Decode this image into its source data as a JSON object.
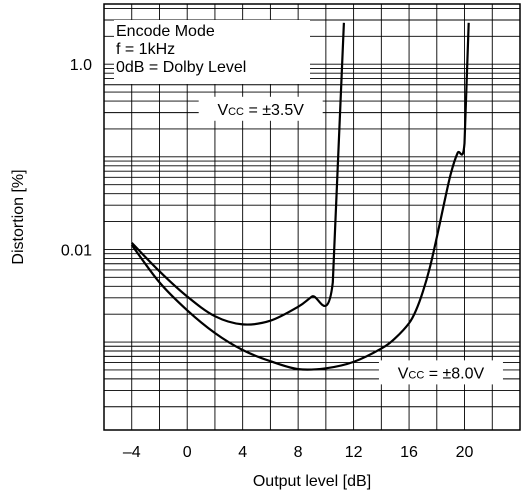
{
  "chart_data": {
    "type": "line",
    "xlabel": "Output level [dB]",
    "ylabel": "Distortion [%]",
    "xlim": [
      -6,
      24
    ],
    "ylim_log10": [
      -3.95,
      0.65
    ],
    "y_scale": "log",
    "x_ticks": [
      -4,
      0,
      4,
      8,
      12,
      16,
      20
    ],
    "x_tick_labels": [
      "–4",
      "0",
      "4",
      "8",
      "12",
      "16",
      "20"
    ],
    "y_ticks": [
      1.0,
      0.01
    ],
    "y_tick_labels": [
      "1.0",
      "0.01"
    ],
    "grid": true,
    "notes": [
      "Encode Mode",
      "f = 1kHz",
      "0dB = Dolby Level"
    ],
    "series": [
      {
        "name": "VCC = ±3.5V",
        "label_main": "V",
        "label_sub": "CC",
        "label_rest": " = ±3.5V",
        "x": [
          -4,
          -2,
          0,
          2,
          4,
          6,
          8,
          9,
          10.5,
          11.3
        ],
        "y": [
          0.0118,
          0.0058,
          0.0031,
          0.0019,
          0.00155,
          0.0017,
          0.0024,
          0.0031,
          0.0044,
          2.8
        ]
      },
      {
        "name": "VCC = ±8.0V",
        "label_main": "V",
        "label_sub": "CC",
        "label_rest": " = ±8.0V",
        "x": [
          -4,
          -2,
          0,
          2,
          4,
          6,
          8,
          10,
          12,
          14,
          15,
          16,
          16.5,
          17,
          17.5,
          18,
          18.5,
          19,
          19.5,
          20,
          20.3
        ],
        "y": [
          0.0112,
          0.0044,
          0.0022,
          0.00125,
          0.00082,
          0.00062,
          0.00051,
          0.00052,
          0.00061,
          0.00085,
          0.0011,
          0.0016,
          0.0022,
          0.0035,
          0.0064,
          0.0135,
          0.03,
          0.065,
          0.11,
          0.14,
          2.8
        ]
      }
    ]
  }
}
